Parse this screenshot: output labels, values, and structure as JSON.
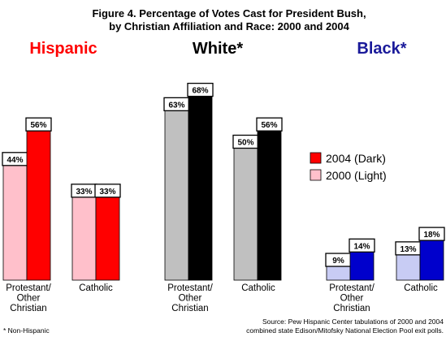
{
  "title_lines": [
    "Figure 4.   Percentage of Votes Cast for President Bush,",
    "by Christian Affiliation and Race:  2000 and 2004"
  ],
  "legend": {
    "entry_2004": "2004 (Dark)",
    "entry_2000": "2000 (Light)"
  },
  "source_lines": [
    "Source:  Pew Hispanic Center tabulations of 2000 and 2004",
    "combined state Edison/Mitofsky National Election Pool exit polls."
  ],
  "footnote": "* Non-Hispanic",
  "chart_data": {
    "type": "bar",
    "title": "Figure 4.   Percentage of Votes Cast for President Bush, by Christian Affiliation and Race:  2000 and 2004",
    "ylim": [
      0,
      80
    ],
    "grid": false,
    "legend_placement": "right",
    "series_names": [
      "2000 (Light)",
      "2004 (Dark)"
    ],
    "groups": [
      {
        "name": "Hispanic",
        "color": "#ff0000",
        "light_color": "#ffc0cb",
        "dark_color": "#ff0000",
        "categories": [
          {
            "label": [
              "Protestant/",
              "Other",
              "Christian"
            ],
            "values": [
              44,
              56
            ],
            "value_labels": [
              "44%",
              "56%"
            ]
          },
          {
            "label": [
              "Catholic"
            ],
            "values": [
              33,
              33
            ],
            "value_labels": [
              "33%",
              "33%"
            ]
          }
        ]
      },
      {
        "name": "White*",
        "color": "#000000",
        "light_color": "#c0c0c0",
        "dark_color": "#000000",
        "categories": [
          {
            "label": [
              "Protestant/",
              "Other",
              "Christian"
            ],
            "values": [
              63,
              68
            ],
            "value_labels": [
              "63%",
              "68%"
            ]
          },
          {
            "label": [
              "Catholic"
            ],
            "values": [
              50,
              56
            ],
            "value_labels": [
              "50%",
              "56%"
            ]
          }
        ]
      },
      {
        "name": "Black*",
        "color": "#1a1a9a",
        "light_color": "#c8ccf4",
        "dark_color": "#0000cc",
        "categories": [
          {
            "label": [
              "Protestant/",
              "Other",
              "Christian"
            ],
            "values": [
              9,
              14
            ],
            "value_labels": [
              "9%",
              "14%"
            ]
          },
          {
            "label": [
              "Catholic"
            ],
            "values": [
              13,
              18
            ],
            "value_labels": [
              "13%",
              "18%"
            ]
          }
        ]
      }
    ]
  }
}
